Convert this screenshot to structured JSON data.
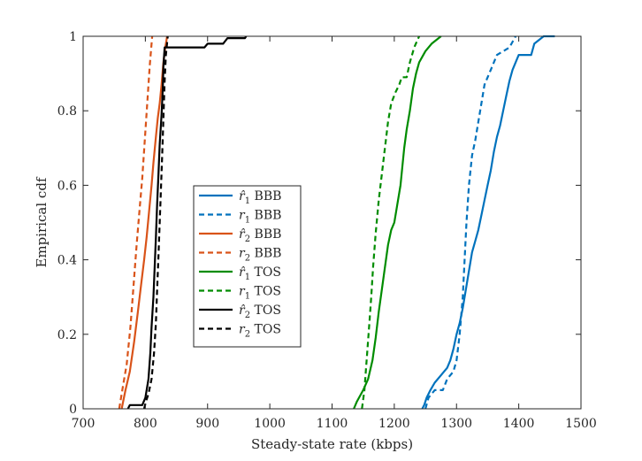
{
  "chart_data": {
    "type": "line",
    "title": "",
    "xlabel": "Steady-state rate (kbps)",
    "ylabel": "Empirical cdf",
    "xlim": [
      700,
      1500
    ],
    "ylim": [
      0,
      1
    ],
    "xticks": [
      700,
      800,
      900,
      1000,
      1100,
      1200,
      1300,
      1400,
      1500
    ],
    "yticks": [
      0,
      0.2,
      0.4,
      0.6,
      0.8,
      1
    ],
    "xtick_labels": [
      "700",
      "800",
      "900",
      "1000",
      "1100",
      "1200",
      "1300",
      "1400",
      "1500"
    ],
    "ytick_labels": [
      "0",
      "0.2",
      "0.4",
      "0.6",
      "0.8",
      "1"
    ],
    "grid": false,
    "legend_position": "center-left",
    "series": [
      {
        "name": "r̂1 BBB",
        "sym": "r̂",
        "sub": "1",
        "proto": "BBB",
        "color": "#0072BD",
        "dash": "solid",
        "points": [
          [
            1245,
            0
          ],
          [
            1248,
            0.01
          ],
          [
            1252,
            0.03
          ],
          [
            1258,
            0.05
          ],
          [
            1265,
            0.07
          ],
          [
            1275,
            0.09
          ],
          [
            1285,
            0.11
          ],
          [
            1290,
            0.13
          ],
          [
            1295,
            0.16
          ],
          [
            1300,
            0.2
          ],
          [
            1305,
            0.23
          ],
          [
            1310,
            0.27
          ],
          [
            1315,
            0.32
          ],
          [
            1320,
            0.37
          ],
          [
            1325,
            0.42
          ],
          [
            1330,
            0.45
          ],
          [
            1335,
            0.48
          ],
          [
            1340,
            0.52
          ],
          [
            1345,
            0.56
          ],
          [
            1350,
            0.6
          ],
          [
            1355,
            0.64
          ],
          [
            1360,
            0.69
          ],
          [
            1365,
            0.73
          ],
          [
            1370,
            0.76
          ],
          [
            1375,
            0.8
          ],
          [
            1380,
            0.84
          ],
          [
            1385,
            0.88
          ],
          [
            1390,
            0.91
          ],
          [
            1400,
            0.95
          ],
          [
            1420,
            0.95
          ],
          [
            1425,
            0.98
          ],
          [
            1440,
            1
          ],
          [
            1458,
            1
          ]
        ]
      },
      {
        "name": "r1 BBB",
        "sym": "r",
        "sub": "1",
        "proto": "BBB",
        "color": "#0072BD",
        "dash": "dashed",
        "points": [
          [
            1250,
            0
          ],
          [
            1255,
            0.03
          ],
          [
            1265,
            0.05
          ],
          [
            1278,
            0.05
          ],
          [
            1285,
            0.08
          ],
          [
            1295,
            0.1
          ],
          [
            1300,
            0.13
          ],
          [
            1305,
            0.2
          ],
          [
            1310,
            0.3
          ],
          [
            1313,
            0.4
          ],
          [
            1316,
            0.5
          ],
          [
            1320,
            0.6
          ],
          [
            1325,
            0.68
          ],
          [
            1330,
            0.72
          ],
          [
            1335,
            0.77
          ],
          [
            1340,
            0.82
          ],
          [
            1345,
            0.87
          ],
          [
            1355,
            0.91
          ],
          [
            1365,
            0.95
          ],
          [
            1385,
            0.97
          ],
          [
            1395,
            1
          ]
        ]
      },
      {
        "name": "r̂2 BBB",
        "sym": "r̂",
        "sub": "2",
        "proto": "BBB",
        "color": "#D95319",
        "dash": "solid",
        "points": [
          [
            762,
            0
          ],
          [
            768,
            0.05
          ],
          [
            775,
            0.1
          ],
          [
            782,
            0.18
          ],
          [
            788,
            0.26
          ],
          [
            793,
            0.33
          ],
          [
            798,
            0.4
          ],
          [
            802,
            0.46
          ],
          [
            806,
            0.53
          ],
          [
            810,
            0.6
          ],
          [
            813,
            0.66
          ],
          [
            817,
            0.73
          ],
          [
            820,
            0.78
          ],
          [
            823,
            0.82
          ],
          [
            826,
            0.87
          ],
          [
            829,
            0.93
          ],
          [
            832,
            0.97
          ],
          [
            835,
            1
          ]
        ]
      },
      {
        "name": "r2 BBB",
        "sym": "r",
        "sub": "2",
        "proto": "BBB",
        "color": "#D95319",
        "dash": "dashed",
        "points": [
          [
            758,
            0
          ],
          [
            763,
            0.05
          ],
          [
            770,
            0.12
          ],
          [
            776,
            0.22
          ],
          [
            781,
            0.33
          ],
          [
            786,
            0.44
          ],
          [
            790,
            0.52
          ],
          [
            795,
            0.62
          ],
          [
            799,
            0.72
          ],
          [
            803,
            0.82
          ],
          [
            807,
            0.92
          ],
          [
            811,
            1
          ]
        ]
      },
      {
        "name": "r̂1 TOS",
        "sym": "r̂",
        "sub": "1",
        "proto": "TOS",
        "color": "#008C00",
        "dash": "solid",
        "points": [
          [
            1135,
            0
          ],
          [
            1140,
            0.02
          ],
          [
            1150,
            0.05
          ],
          [
            1158,
            0.08
          ],
          [
            1165,
            0.13
          ],
          [
            1170,
            0.19
          ],
          [
            1175,
            0.26
          ],
          [
            1180,
            0.32
          ],
          [
            1185,
            0.38
          ],
          [
            1190,
            0.44
          ],
          [
            1195,
            0.48
          ],
          [
            1200,
            0.5
          ],
          [
            1205,
            0.55
          ],
          [
            1210,
            0.6
          ],
          [
            1213,
            0.65
          ],
          [
            1216,
            0.7
          ],
          [
            1220,
            0.75
          ],
          [
            1225,
            0.8
          ],
          [
            1230,
            0.86
          ],
          [
            1235,
            0.9
          ],
          [
            1240,
            0.93
          ],
          [
            1250,
            0.96
          ],
          [
            1260,
            0.98
          ],
          [
            1275,
            1
          ]
        ]
      },
      {
        "name": "r1 TOS",
        "sym": "r",
        "sub": "1",
        "proto": "TOS",
        "color": "#008C00",
        "dash": "dashed",
        "points": [
          [
            1148,
            0
          ],
          [
            1152,
            0.05
          ],
          [
            1156,
            0.14
          ],
          [
            1160,
            0.23
          ],
          [
            1163,
            0.3
          ],
          [
            1166,
            0.38
          ],
          [
            1170,
            0.47
          ],
          [
            1175,
            0.56
          ],
          [
            1180,
            0.63
          ],
          [
            1185,
            0.7
          ],
          [
            1190,
            0.77
          ],
          [
            1195,
            0.82
          ],
          [
            1202,
            0.85
          ],
          [
            1208,
            0.87
          ],
          [
            1212,
            0.89
          ],
          [
            1220,
            0.89
          ],
          [
            1225,
            0.93
          ],
          [
            1232,
            0.97
          ],
          [
            1240,
            1
          ]
        ]
      },
      {
        "name": "r̂2 TOS",
        "sym": "r̂",
        "sub": "2",
        "proto": "TOS",
        "color": "#000000",
        "dash": "solid",
        "points": [
          [
            772,
            0
          ],
          [
            775,
            0.01
          ],
          [
            795,
            0.01
          ],
          [
            800,
            0.03
          ],
          [
            805,
            0.08
          ],
          [
            808,
            0.15
          ],
          [
            810,
            0.22
          ],
          [
            813,
            0.3
          ],
          [
            815,
            0.38
          ],
          [
            817,
            0.46
          ],
          [
            819,
            0.55
          ],
          [
            821,
            0.63
          ],
          [
            823,
            0.71
          ],
          [
            826,
            0.79
          ],
          [
            828,
            0.86
          ],
          [
            829,
            0.92
          ],
          [
            831,
            0.97
          ],
          [
            860,
            0.97
          ],
          [
            895,
            0.97
          ],
          [
            900,
            0.98
          ],
          [
            925,
            0.98
          ],
          [
            932,
            0.995
          ],
          [
            960,
            0.995
          ],
          [
            962,
            1
          ]
        ]
      },
      {
        "name": "r2 TOS",
        "sym": "r",
        "sub": "2",
        "proto": "TOS",
        "color": "#000000",
        "dash": "dashed",
        "points": [
          [
            798,
            0
          ],
          [
            801,
            0.02
          ],
          [
            805,
            0.04
          ],
          [
            810,
            0.08
          ],
          [
            814,
            0.15
          ],
          [
            817,
            0.23
          ],
          [
            819,
            0.32
          ],
          [
            821,
            0.41
          ],
          [
            823,
            0.5
          ],
          [
            825,
            0.59
          ],
          [
            827,
            0.68
          ],
          [
            829,
            0.78
          ],
          [
            831,
            0.88
          ],
          [
            833,
            0.95
          ],
          [
            836,
            1
          ]
        ]
      }
    ]
  }
}
